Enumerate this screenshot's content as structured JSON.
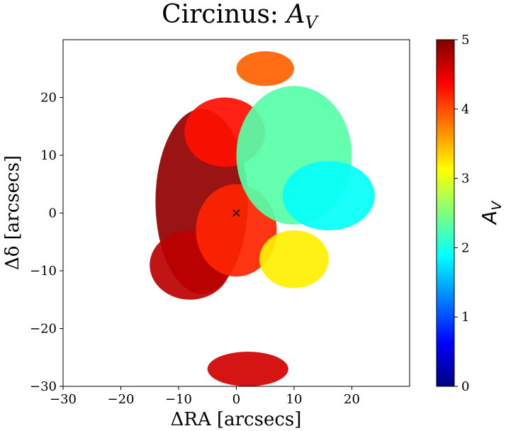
{
  "chart_data": {
    "type": "heatmap",
    "title_text": "Circinus: ",
    "title_symbol": "A",
    "title_subscript": "V",
    "xlabel": "ΔRA [arcsecs]",
    "ylabel": "Δδ [arcsecs]",
    "xlim": [
      -30,
      30
    ],
    "ylim": [
      -30,
      30
    ],
    "xticks": [
      -30,
      -20,
      -10,
      0,
      10,
      20
    ],
    "yticks": [
      -30,
      -20,
      -10,
      0,
      10,
      20
    ],
    "colorbar": {
      "label_symbol": "A",
      "label_subscript": "V",
      "range": [
        0,
        5
      ],
      "ticks": [
        0,
        1,
        2,
        3,
        4,
        5
      ],
      "colormap": "jet"
    },
    "marker": {
      "type": "x",
      "x": 0,
      "y": 0
    },
    "map_regions": [
      {
        "desc": "nucleus dust lane",
        "x": -6,
        "y": 2,
        "rx": 8,
        "ry": 16,
        "value": 4.9
      },
      {
        "desc": "south-west high extinction",
        "x": -8,
        "y": -9,
        "rx": 7,
        "ry": 6,
        "value": 4.7
      },
      {
        "desc": "central ring",
        "x": 0,
        "y": -3,
        "rx": 7,
        "ry": 8,
        "value": 4.2
      },
      {
        "desc": "north-west arc",
        "x": -2,
        "y": 14,
        "rx": 7,
        "ry": 6,
        "value": 4.3
      },
      {
        "desc": "ionization cone north-east",
        "x": 10,
        "y": 10,
        "rx": 10,
        "ry": 12,
        "value": 2.3
      },
      {
        "desc": "eastern cone",
        "x": 16,
        "y": 3,
        "rx": 8,
        "ry": 6,
        "value": 1.9
      },
      {
        "desc": "east-south patch",
        "x": 10,
        "y": -8,
        "rx": 6,
        "ry": 5,
        "value": 3.2
      },
      {
        "desc": "southern clump",
        "x": 2,
        "y": -27,
        "rx": 7,
        "ry": 3,
        "value": 4.6
      },
      {
        "desc": "north clump",
        "x": 5,
        "y": 25,
        "rx": 5,
        "ry": 3,
        "value": 3.9
      }
    ],
    "color_stops": [
      "#00007f",
      "#0000ff",
      "#007fff",
      "#00ffff",
      "#7fff7f",
      "#ffff00",
      "#ff7f00",
      "#ff0000",
      "#7f0000"
    ]
  }
}
